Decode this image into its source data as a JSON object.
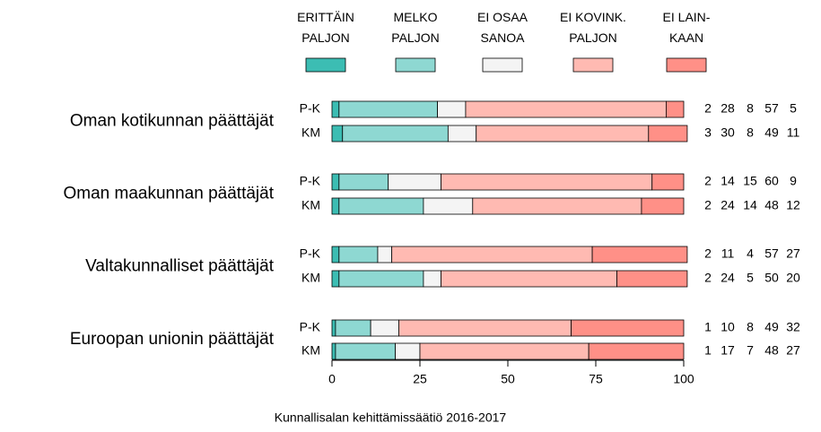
{
  "chart_data": {
    "type": "stacked-bar-horizontal",
    "groups": [
      "Oman kotikunnan päättäjät",
      "Oman maakunnan päättäjät",
      "Valtakunnalliset päättäjät",
      "Euroopan unionin päättäjät"
    ],
    "categories": [
      "P-K",
      "KM",
      "P-K",
      "KM",
      "P-K",
      "KM",
      "P-K",
      "KM"
    ],
    "series": [
      {
        "name": "ERITTÄIN\nPALJON",
        "color": "#3cbdb3",
        "values": [
          2,
          3,
          2,
          2,
          2,
          2,
          1,
          1
        ]
      },
      {
        "name": "MELKO\nPALJON",
        "color": "#8ed8d2",
        "values": [
          28,
          30,
          14,
          24,
          11,
          24,
          10,
          17
        ]
      },
      {
        "name": "EI OSAA\nSANOA",
        "color": "#f4f4f4",
        "values": [
          8,
          8,
          15,
          14,
          4,
          5,
          8,
          7
        ]
      },
      {
        "name": "EI KOVINK.\nPALJON",
        "color": "#ffbab2",
        "values": [
          57,
          49,
          60,
          48,
          57,
          50,
          49,
          48
        ]
      },
      {
        "name": "EI LAIN-\nKAAN",
        "color": "#ff9087",
        "values": [
          5,
          11,
          9,
          12,
          27,
          20,
          32,
          27
        ]
      }
    ],
    "xlim": [
      0,
      100
    ],
    "xticks": [
      0,
      25,
      50,
      75,
      100
    ],
    "caption": "Kunnallisalan kehittämissäätiö 2016-2017"
  }
}
